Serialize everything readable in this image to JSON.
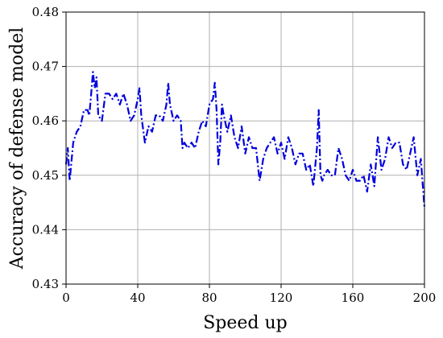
{
  "chart_data": {
    "type": "line",
    "title": "",
    "xlabel": "Speed up",
    "ylabel": "Accuracy of defense model",
    "xlim": [
      0,
      200
    ],
    "ylim": [
      0.43,
      0.48
    ],
    "xticks": [
      0,
      40,
      80,
      120,
      160,
      200
    ],
    "yticks": [
      0.43,
      0.44,
      0.45,
      0.46,
      0.47,
      0.48
    ],
    "xtick_labels": [
      "0",
      "40",
      "80",
      "120",
      "160",
      "200"
    ],
    "ytick_labels": [
      "0.43",
      "0.44",
      "0.45",
      "0.46",
      "0.47",
      "0.48"
    ],
    "grid": true,
    "legend": "none",
    "series": [
      {
        "color": "#0000dd",
        "line_style": "dash-dot",
        "x": [
          0,
          1,
          2,
          4,
          6,
          8,
          10,
          12,
          13,
          14,
          15,
          16,
          17,
          18,
          20,
          22,
          24,
          26,
          28,
          30,
          32,
          34,
          36,
          38,
          40,
          41,
          42,
          44,
          46,
          48,
          50,
          52,
          54,
          56,
          57,
          58,
          60,
          62,
          64,
          65,
          66,
          68,
          70,
          72,
          74,
          76,
          78,
          80,
          82,
          83,
          84,
          85,
          86,
          87,
          88,
          90,
          92,
          94,
          96,
          98,
          100,
          102,
          104,
          106,
          108,
          110,
          112,
          114,
          116,
          118,
          120,
          122,
          124,
          126,
          128,
          130,
          132,
          134,
          136,
          138,
          140,
          141,
          142,
          143,
          144,
          146,
          148,
          150,
          152,
          154,
          156,
          158,
          160,
          162,
          164,
          166,
          168,
          170,
          172,
          174,
          176,
          178,
          180,
          182,
          184,
          186,
          188,
          190,
          192,
          194,
          196,
          198,
          200
        ],
        "y": [
          0.452,
          0.455,
          0.449,
          0.456,
          0.458,
          0.459,
          0.462,
          0.462,
          0.461,
          0.465,
          0.469,
          0.466,
          0.468,
          0.461,
          0.46,
          0.465,
          0.465,
          0.464,
          0.465,
          0.463,
          0.465,
          0.463,
          0.46,
          0.461,
          0.464,
          0.466,
          0.461,
          0.456,
          0.459,
          0.458,
          0.461,
          0.461,
          0.46,
          0.463,
          0.467,
          0.463,
          0.46,
          0.461,
          0.46,
          0.455,
          0.456,
          0.455,
          0.456,
          0.455,
          0.458,
          0.46,
          0.459,
          0.463,
          0.464,
          0.467,
          0.462,
          0.452,
          0.456,
          0.463,
          0.461,
          0.458,
          0.461,
          0.457,
          0.455,
          0.459,
          0.454,
          0.457,
          0.455,
          0.455,
          0.449,
          0.453,
          0.455,
          0.456,
          0.457,
          0.454,
          0.456,
          0.453,
          0.457,
          0.455,
          0.452,
          0.454,
          0.454,
          0.451,
          0.452,
          0.448,
          0.455,
          0.462,
          0.45,
          0.449,
          0.45,
          0.451,
          0.45,
          0.45,
          0.455,
          0.453,
          0.45,
          0.449,
          0.451,
          0.449,
          0.449,
          0.45,
          0.447,
          0.452,
          0.448,
          0.457,
          0.451,
          0.453,
          0.457,
          0.455,
          0.456,
          0.456,
          0.452,
          0.451,
          0.454,
          0.457,
          0.45,
          0.453,
          0.444
        ]
      }
    ]
  }
}
